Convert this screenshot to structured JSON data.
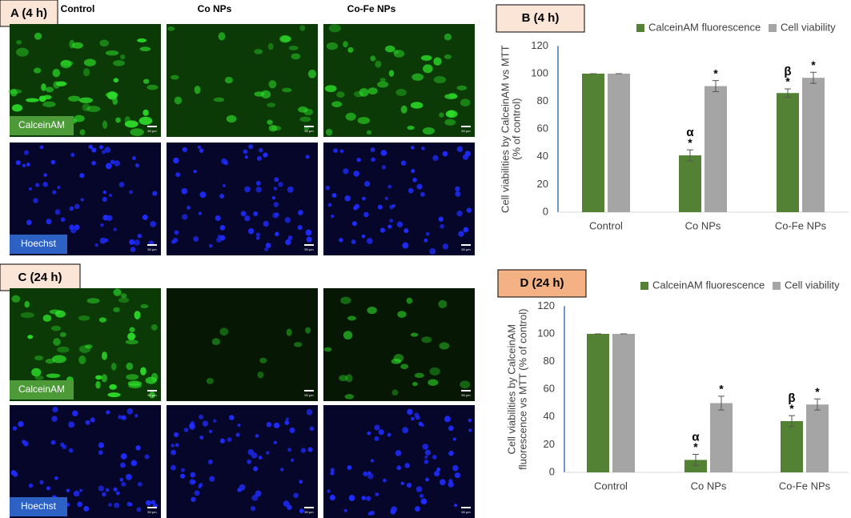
{
  "image_panels": [
    {
      "label": "A (4 h)",
      "columns": [
        "Control",
        "Co NPs",
        "Co-Fe NPs"
      ],
      "rows": [
        "CalceinAM",
        "Hoechst"
      ],
      "scale_bar": "50 µm"
    },
    {
      "label": "C (24 h)",
      "rows": [
        "CalceinAM",
        "Hoechst"
      ],
      "scale_bar": "50 µm"
    }
  ],
  "chart_data": [
    {
      "type": "bar",
      "title": "B (4 h)",
      "ylabel": [
        "Cell viabilities by CalceinAM vs MTT",
        "(% of control)"
      ],
      "categories": [
        "Control",
        "Co NPs",
        "Co-Fe NPs"
      ],
      "series": [
        {
          "name": "CalceinAM fluorescence",
          "color": "#548235",
          "values": [
            100,
            41,
            86
          ],
          "errors": [
            0,
            4,
            3
          ]
        },
        {
          "name": "Cell viability",
          "color": "#a5a5a5",
          "values": [
            100,
            91,
            97
          ],
          "errors": [
            0,
            4,
            4
          ]
        }
      ],
      "ylim": [
        0,
        120
      ],
      "yticks": [
        0,
        20,
        40,
        60,
        80,
        100,
        120
      ],
      "annotations": [
        {
          "text": "*",
          "series": 0,
          "category": 1
        },
        {
          "text": "α",
          "series": 0,
          "category": 1
        },
        {
          "text": "*",
          "series": 1,
          "category": 1
        },
        {
          "text": "*",
          "series": 0,
          "category": 2
        },
        {
          "text": "β",
          "series": 0,
          "category": 2
        },
        {
          "text": "*",
          "series": 1,
          "category": 2
        }
      ]
    },
    {
      "type": "bar",
      "title": "D (24 h)",
      "ylabel": [
        "Cell viabilities by CalceinAM",
        "fluorescence vs MTT (% of control)"
      ],
      "categories": [
        "Control",
        "Co NPs",
        "Co-Fe NPs"
      ],
      "series": [
        {
          "name": "CalceinAM fluorescence",
          "color": "#548235",
          "values": [
            100,
            9,
            37
          ],
          "errors": [
            0,
            4,
            4
          ]
        },
        {
          "name": "Cell viability",
          "color": "#a5a5a5",
          "values": [
            100,
            50,
            49
          ],
          "errors": [
            0,
            5,
            4
          ]
        }
      ],
      "ylim": [
        0,
        120
      ],
      "yticks": [
        0,
        20,
        40,
        60,
        80,
        100,
        120
      ],
      "annotations": [
        {
          "text": "*",
          "series": 0,
          "category": 1
        },
        {
          "text": "α",
          "series": 0,
          "category": 1
        },
        {
          "text": "*",
          "series": 1,
          "category": 1
        },
        {
          "text": "*",
          "series": 0,
          "category": 2
        },
        {
          "text": "β",
          "series": 0,
          "category": 2
        },
        {
          "text": "*",
          "series": 1,
          "category": 2
        }
      ]
    }
  ]
}
